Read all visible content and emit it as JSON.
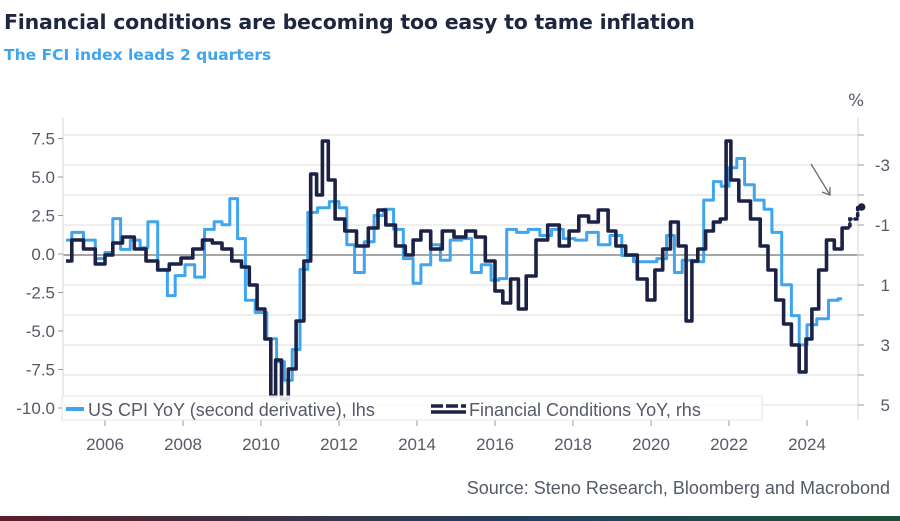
{
  "header": {
    "title": "Financial conditions are becoming too easy to tame inflation",
    "subtitle": "The FCI index leads 2 quarters"
  },
  "footer": {
    "source": "Source: Steno Research, Bloomberg and Macrobond"
  },
  "colors": {
    "cpi": "#3ea5ee",
    "fci": "#1c2245",
    "title": "#1f2640",
    "subtitle": "#3ea5ee",
    "grid": "#e3e3e3",
    "axis_text": "#555a66"
  },
  "chart_data": {
    "type": "line",
    "title": "Financial conditions are becoming too easy to tame inflation",
    "subtitle": "The FCI index leads 2 quarters",
    "xlabel": "",
    "ylabel_left": "",
    "ylabel_right": "%",
    "x_range": [
      2005,
      2025.5
    ],
    "x_ticks": [
      "2006",
      "2008",
      "2010",
      "2012",
      "2014",
      "2016",
      "2018",
      "2020",
      "2022",
      "2024"
    ],
    "y_left": {
      "range": [
        -10.0,
        7.5
      ],
      "ticks": [
        "7.5",
        "5.0",
        "2.5",
        "0.0",
        "-2.5",
        "-5.0",
        "-7.5",
        "-10.0"
      ]
    },
    "y_right": {
      "range": [
        -4,
        5
      ],
      "inverted": true,
      "ticks": [
        "-3",
        "-1",
        "1",
        "3",
        "5"
      ]
    },
    "grid": true,
    "legend_position": "bottom-left",
    "annotation": "arrow pointing at latest FCI reading",
    "series": [
      {
        "name": "US CPI YoY (second derivative), lhs",
        "axis": "left",
        "style": "solid",
        "points": [
          [
            2005.0,
            0.9
          ],
          [
            2005.3,
            1.4
          ],
          [
            2005.6,
            0.9
          ],
          [
            2005.9,
            -0.3
          ],
          [
            2006.1,
            0.1
          ],
          [
            2006.3,
            2.3
          ],
          [
            2006.5,
            0.3
          ],
          [
            2006.8,
            0.9
          ],
          [
            2007.0,
            0.4
          ],
          [
            2007.2,
            2.1
          ],
          [
            2007.5,
            -1.0
          ],
          [
            2007.7,
            -2.7
          ],
          [
            2007.9,
            -1.4
          ],
          [
            2008.2,
            -0.7
          ],
          [
            2008.4,
            -1.5
          ],
          [
            2008.7,
            1.6
          ],
          [
            2008.9,
            2.1
          ],
          [
            2009.1,
            1.9
          ],
          [
            2009.3,
            3.6
          ],
          [
            2009.5,
            1.0
          ],
          [
            2009.7,
            -3.0
          ],
          [
            2010.0,
            -3.8
          ],
          [
            2010.3,
            -5.5
          ],
          [
            2010.5,
            -7.0
          ],
          [
            2010.7,
            -8.2
          ],
          [
            2010.9,
            -6.2
          ],
          [
            2011.1,
            -1.0
          ],
          [
            2011.3,
            2.7
          ],
          [
            2011.6,
            3.0
          ],
          [
            2011.9,
            3.4
          ],
          [
            2012.1,
            3.0
          ],
          [
            2012.3,
            0.6
          ],
          [
            2012.5,
            -1.2
          ],
          [
            2012.8,
            0.8
          ],
          [
            2013.0,
            2.5
          ],
          [
            2013.3,
            2.9
          ],
          [
            2013.5,
            1.6
          ],
          [
            2013.8,
            -0.3
          ],
          [
            2014.0,
            -1.9
          ],
          [
            2014.2,
            -0.7
          ],
          [
            2014.5,
            0.6
          ],
          [
            2014.7,
            -0.4
          ],
          [
            2015.0,
            0.9
          ],
          [
            2015.3,
            1.0
          ],
          [
            2015.5,
            -1.2
          ],
          [
            2015.8,
            -0.7
          ],
          [
            2016.0,
            -1.7
          ],
          [
            2016.2,
            -1.6
          ],
          [
            2016.4,
            1.6
          ],
          [
            2016.7,
            1.4
          ],
          [
            2017.0,
            1.6
          ],
          [
            2017.3,
            1.2
          ],
          [
            2017.6,
            1.6
          ],
          [
            2017.9,
            1.0
          ],
          [
            2018.2,
            0.9
          ],
          [
            2018.5,
            1.4
          ],
          [
            2018.8,
            0.6
          ],
          [
            2019.1,
            1.2
          ],
          [
            2019.4,
            -0.1
          ],
          [
            2019.7,
            -0.5
          ],
          [
            2020.0,
            -0.5
          ],
          [
            2020.3,
            -0.3
          ],
          [
            2020.5,
            1.2
          ],
          [
            2020.7,
            -1.2
          ],
          [
            2020.9,
            -0.4
          ],
          [
            2021.2,
            -0.5
          ],
          [
            2021.5,
            3.5
          ],
          [
            2021.7,
            4.7
          ],
          [
            2021.9,
            4.4
          ],
          [
            2022.1,
            5.6
          ],
          [
            2022.3,
            6.2
          ],
          [
            2022.5,
            4.5
          ],
          [
            2022.8,
            3.5
          ],
          [
            2023.0,
            2.9
          ],
          [
            2023.2,
            1.4
          ],
          [
            2023.5,
            -2.0
          ],
          [
            2023.7,
            -4.0
          ],
          [
            2023.9,
            -5.9
          ],
          [
            2024.1,
            -4.6
          ],
          [
            2024.4,
            -4.2
          ],
          [
            2024.7,
            -3.0
          ],
          [
            2024.9,
            -2.9
          ]
        ]
      },
      {
        "name": "Financial Conditions YoY, rhs",
        "axis": "right",
        "style": "solid",
        "projection_from": 2025.0,
        "points": [
          [
            2005.0,
            0.2
          ],
          [
            2005.3,
            -0.5
          ],
          [
            2005.6,
            -0.2
          ],
          [
            2005.9,
            0.3
          ],
          [
            2006.1,
            0.0
          ],
          [
            2006.3,
            -0.4
          ],
          [
            2006.6,
            -0.6
          ],
          [
            2006.9,
            -0.2
          ],
          [
            2007.2,
            0.2
          ],
          [
            2007.5,
            0.5
          ],
          [
            2007.8,
            0.3
          ],
          [
            2008.1,
            0.1
          ],
          [
            2008.4,
            -0.2
          ],
          [
            2008.6,
            -0.5
          ],
          [
            2008.9,
            -0.4
          ],
          [
            2009.1,
            -0.2
          ],
          [
            2009.4,
            0.2
          ],
          [
            2009.6,
            0.4
          ],
          [
            2009.8,
            1.0
          ],
          [
            2010.0,
            1.8
          ],
          [
            2010.2,
            2.8
          ],
          [
            2010.3,
            4.7
          ],
          [
            2010.45,
            3.5
          ],
          [
            2010.6,
            4.8
          ],
          [
            2010.8,
            3.8
          ],
          [
            2011.0,
            2.2
          ],
          [
            2011.2,
            0.2
          ],
          [
            2011.35,
            -2.7
          ],
          [
            2011.5,
            -2.0
          ],
          [
            2011.65,
            -3.8
          ],
          [
            2011.8,
            -2.5
          ],
          [
            2012.0,
            -1.2
          ],
          [
            2012.3,
            -0.8
          ],
          [
            2012.6,
            -0.3
          ],
          [
            2012.9,
            -0.9
          ],
          [
            2013.1,
            -1.5
          ],
          [
            2013.3,
            -1.0
          ],
          [
            2013.6,
            -0.3
          ],
          [
            2013.8,
            0.0
          ],
          [
            2014.0,
            -0.5
          ],
          [
            2014.2,
            -0.8
          ],
          [
            2014.5,
            -0.2
          ],
          [
            2014.8,
            -0.8
          ],
          [
            2015.1,
            -0.6
          ],
          [
            2015.4,
            -0.8
          ],
          [
            2015.6,
            -0.6
          ],
          [
            2015.9,
            0.2
          ],
          [
            2016.1,
            1.2
          ],
          [
            2016.3,
            1.6
          ],
          [
            2016.5,
            0.8
          ],
          [
            2016.7,
            1.8
          ],
          [
            2016.9,
            0.7
          ],
          [
            2017.2,
            -0.5
          ],
          [
            2017.5,
            -1.0
          ],
          [
            2017.8,
            -0.3
          ],
          [
            2018.0,
            -0.8
          ],
          [
            2018.3,
            -1.3
          ],
          [
            2018.5,
            -1.1
          ],
          [
            2018.8,
            -1.5
          ],
          [
            2019.0,
            -0.8
          ],
          [
            2019.2,
            -0.3
          ],
          [
            2019.5,
            0.0
          ],
          [
            2019.8,
            0.8
          ],
          [
            2020.0,
            1.5
          ],
          [
            2020.2,
            0.5
          ],
          [
            2020.4,
            -0.2
          ],
          [
            2020.6,
            -1.1
          ],
          [
            2020.8,
            -0.3
          ],
          [
            2021.0,
            2.2
          ],
          [
            2021.1,
            0.2
          ],
          [
            2021.3,
            -0.2
          ],
          [
            2021.5,
            -0.8
          ],
          [
            2021.7,
            -1.1
          ],
          [
            2021.85,
            -1.2
          ],
          [
            2022.0,
            -3.8
          ],
          [
            2022.1,
            -2.5
          ],
          [
            2022.4,
            -1.8
          ],
          [
            2022.7,
            -1.2
          ],
          [
            2022.9,
            -0.3
          ],
          [
            2023.1,
            0.5
          ],
          [
            2023.3,
            1.5
          ],
          [
            2023.5,
            2.3
          ],
          [
            2023.7,
            3.0
          ],
          [
            2023.9,
            3.9
          ],
          [
            2024.05,
            2.8
          ],
          [
            2024.2,
            1.8
          ],
          [
            2024.4,
            0.5
          ],
          [
            2024.6,
            -0.5
          ],
          [
            2024.8,
            -0.2
          ],
          [
            2025.0,
            -0.9
          ],
          [
            2025.2,
            -1.2
          ],
          [
            2025.4,
            -1.6
          ]
        ]
      }
    ]
  }
}
